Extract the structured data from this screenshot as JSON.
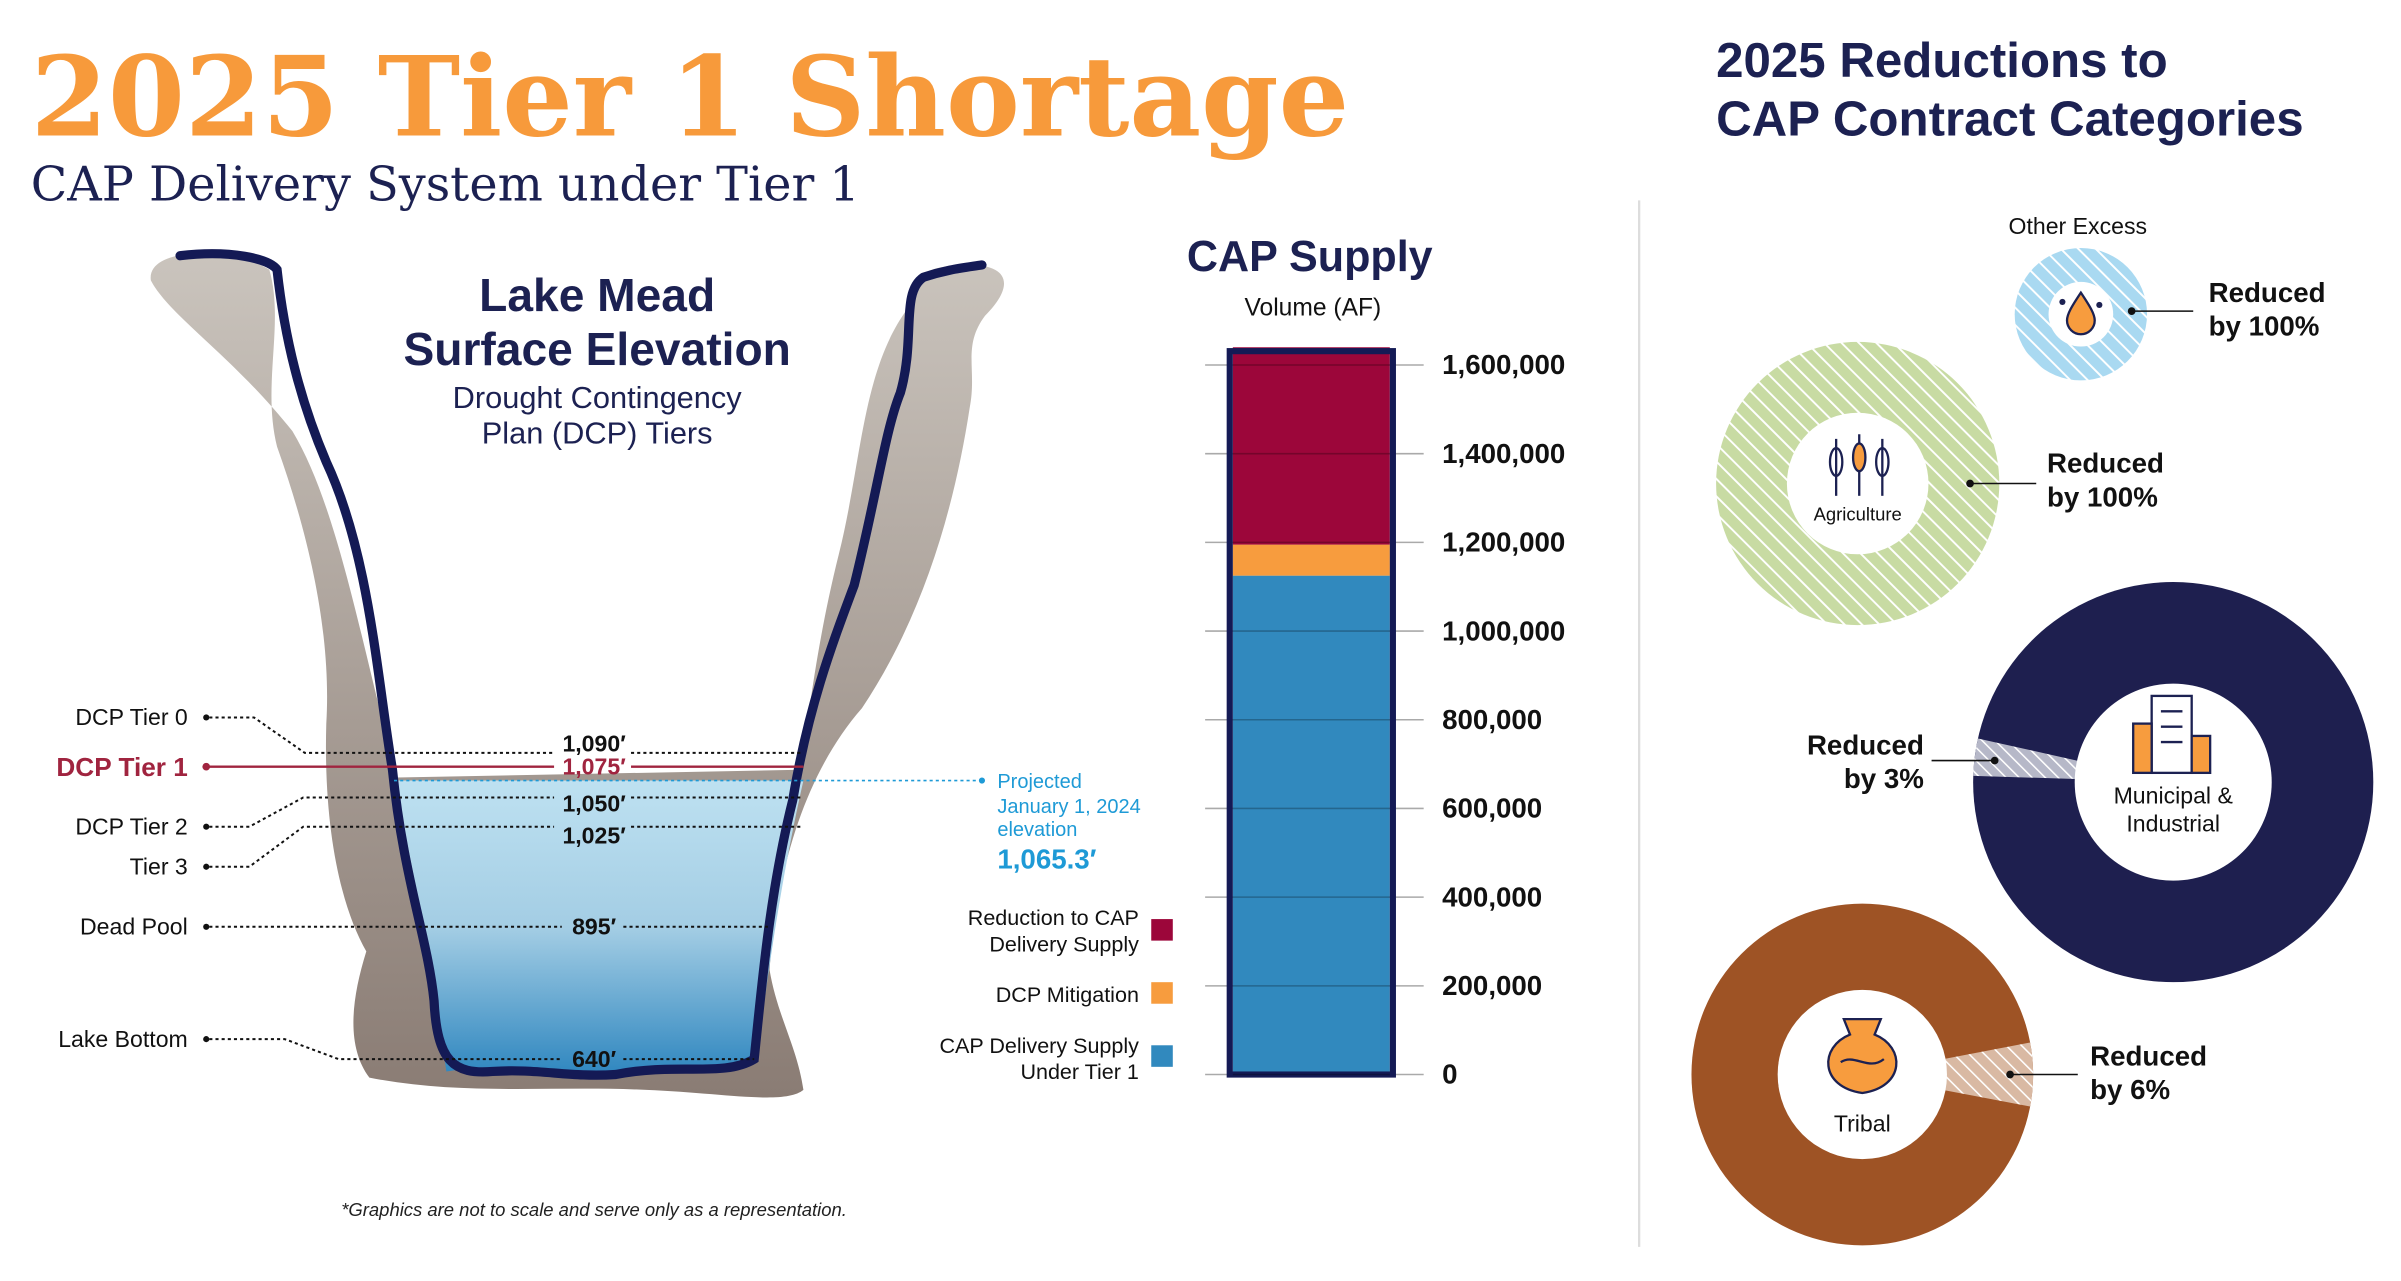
{
  "header": {
    "title": "2025 Tier 1 Shortage",
    "subtitle": "CAP Delivery System under Tier 1",
    "right_title_line1": "2025 Reductions to",
    "right_title_line2": "CAP Contract Categories"
  },
  "lake": {
    "title_line1": "Lake Mead",
    "title_line2": "Surface Elevation",
    "subtitle_line1": "Drought Contingency",
    "subtitle_line2": "Plan (DCP) Tiers",
    "levels": [
      {
        "label": "DCP Tier 0",
        "elevation": "1,090′"
      },
      {
        "label": "DCP Tier 1",
        "elevation": "1,075′"
      },
      {
        "label": "DCP Tier 2",
        "elevation": "1,050′"
      },
      {
        "label": "Tier 3",
        "elevation": "1,025′"
      },
      {
        "label": "Dead Pool",
        "elevation": "895′"
      },
      {
        "label": "Lake Bottom",
        "elevation": "640′"
      }
    ],
    "projected": {
      "line1": "Projected",
      "line2": "January 1, 2024",
      "line3": "elevation",
      "value": "1,065.3′"
    },
    "colors": {
      "tier1": "#A0243F",
      "projected": "#1E9AD6",
      "outline": "#141A55"
    },
    "footnote": "*Graphics are not to scale and serve only as a representation."
  },
  "chart_data": {
    "type": "bar",
    "stacked": true,
    "title": "CAP Supply",
    "ylabel": "Volume (AF)",
    "ylim": [
      0,
      1600000
    ],
    "yticks": [
      "0",
      "200,000",
      "400,000",
      "600,000",
      "800,000",
      "1,000,000",
      "1,200,000",
      "1,400,000",
      "1,600,000"
    ],
    "ytick_values": [
      0,
      200000,
      400000,
      600000,
      800000,
      1000000,
      1200000,
      1400000,
      1600000
    ],
    "grid": true,
    "legend_placement": "left",
    "series": [
      {
        "name": "CAP Delivery Supply Under Tier 1",
        "legend_line1": "CAP Delivery Supply",
        "legend_line2": "Under Tier 1",
        "value": 1125000,
        "color": "#3189BE"
      },
      {
        "name": "DCP Mitigation",
        "legend_line1": "DCP Mitigation",
        "legend_line2": "",
        "value": 70000,
        "color": "#F79C3E"
      },
      {
        "name": "Reduction to CAP Delivery Supply",
        "legend_line1": "Reduction to CAP",
        "legend_line2": "Delivery Supply",
        "value": 445000,
        "color": "#9C063A"
      }
    ]
  },
  "categories": [
    {
      "name": "Other Excess",
      "reduced_line1": "Reduced",
      "reduced_line2": "by 100%",
      "reduction_percent": 100,
      "color": "#A9D9F1",
      "icon": "water-drops-icon"
    },
    {
      "name": "Agriculture",
      "reduced_line1": "Reduced",
      "reduced_line2": "by 100%",
      "reduction_percent": 100,
      "color": "#C8DBA3",
      "icon": "wheat-icon"
    },
    {
      "name_line1": "Municipal &",
      "name_line2": "Industrial",
      "reduced_line1": "Reduced",
      "reduced_line2": "by 3%",
      "reduction_percent": 3,
      "color": "#1E1F4F",
      "icon": "buildings-icon"
    },
    {
      "name": "Tribal",
      "reduced_line1": "Reduced",
      "reduced_line2": "by 6%",
      "reduction_percent": 6,
      "color": "#9E5325",
      "icon": "pottery-icon"
    }
  ]
}
